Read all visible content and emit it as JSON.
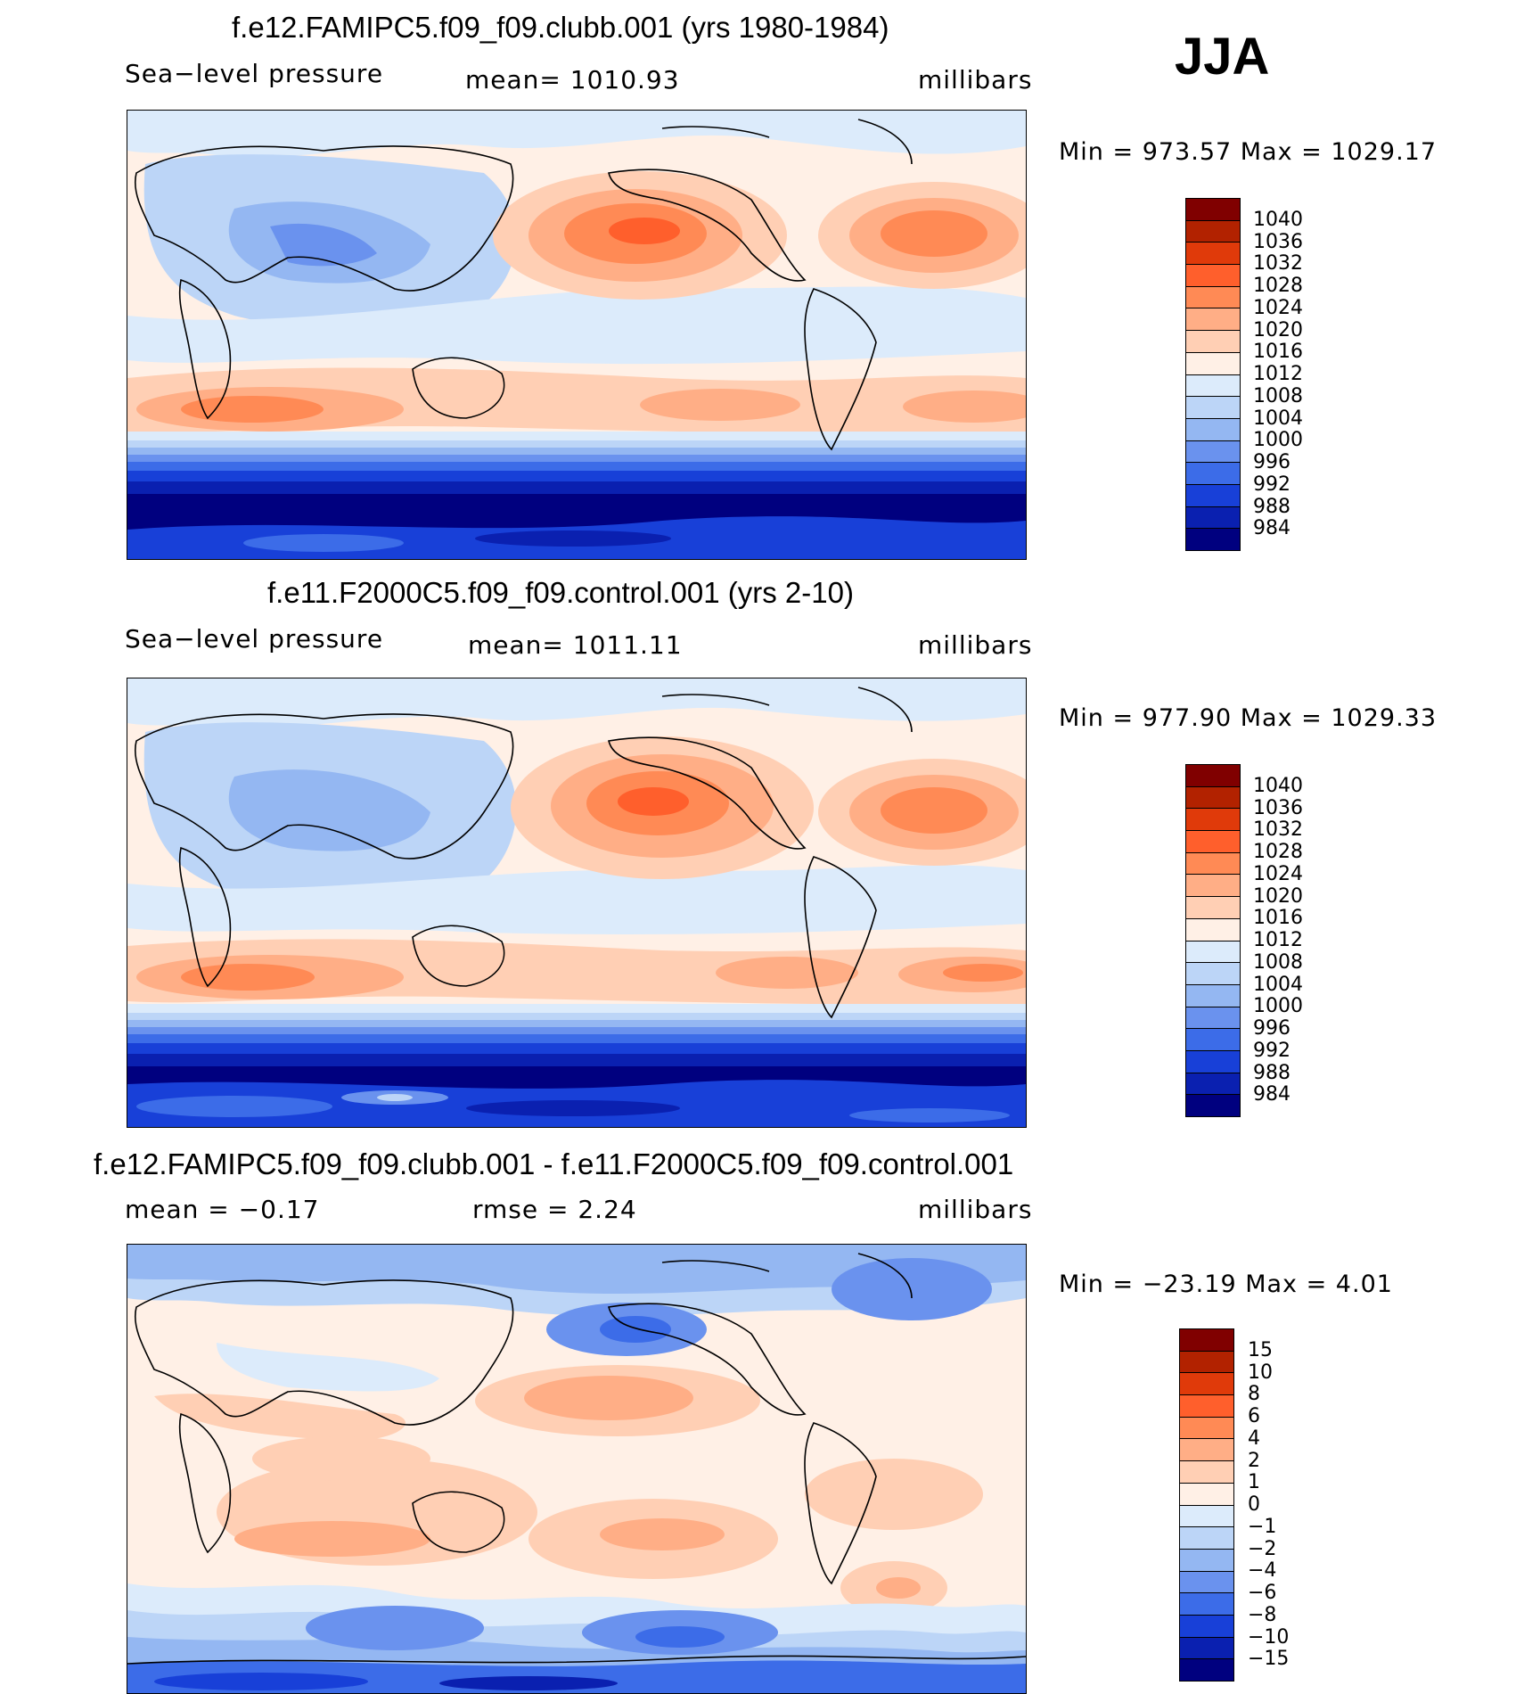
{
  "season": "JJA",
  "panels": [
    {
      "title": "f.e12.FAMIPC5.f09_f09.clubb.001 (yrs 1980-1984)",
      "left_label": "Sea−level  pressure",
      "center_label": "mean=  1010.93",
      "units": "millibars",
      "minmax": "Min  =  973.57  Max  =  1029.17",
      "colorbar": {
        "labels": [
          "1040",
          "1036",
          "1032",
          "1028",
          "1024",
          "1020",
          "1016",
          "1012",
          "1008",
          "1004",
          "1000",
          "996",
          "992",
          "988",
          "984"
        ],
        "colors": [
          "#800000",
          "#b22200",
          "#e03a0a",
          "#ff5f2c",
          "#ff8a55",
          "#ffae86",
          "#ffcfb4",
          "#fff0e6",
          "#dcebfb",
          "#bcd5f7",
          "#94b7f2",
          "#6a92ee",
          "#3c6ce8",
          "#1840d8",
          "#0a20b0",
          "#00007f"
        ]
      }
    },
    {
      "title": "f.e11.F2000C5.f09_f09.control.001 (yrs 2-10)",
      "left_label": "Sea−level  pressure",
      "center_label": "mean=  1011.11",
      "units": "millibars",
      "minmax": "Min  =  977.90  Max  =  1029.33",
      "colorbar": {
        "labels": [
          "1040",
          "1036",
          "1032",
          "1028",
          "1024",
          "1020",
          "1016",
          "1012",
          "1008",
          "1004",
          "1000",
          "996",
          "992",
          "988",
          "984"
        ],
        "colors": [
          "#800000",
          "#b22200",
          "#e03a0a",
          "#ff5f2c",
          "#ff8a55",
          "#ffae86",
          "#ffcfb4",
          "#fff0e6",
          "#dcebfb",
          "#bcd5f7",
          "#94b7f2",
          "#6a92ee",
          "#3c6ce8",
          "#1840d8",
          "#0a20b0",
          "#00007f"
        ]
      }
    },
    {
      "title": "f.e12.FAMIPC5.f09_f09.clubb.001 - f.e11.F2000C5.f09_f09.control.001",
      "left_label": "mean  =    −0.17",
      "center_label": "rmse  =     2.24",
      "units": "millibars",
      "minmax": "Min  =  −23.19  Max  =      4.01",
      "colorbar": {
        "labels": [
          "15",
          "10",
          "8",
          "6",
          "4",
          "2",
          "1",
          "0",
          "−1",
          "−2",
          "−4",
          "−6",
          "−8",
          "−10",
          "−15"
        ],
        "colors": [
          "#800000",
          "#b22200",
          "#e03a0a",
          "#ff5f2c",
          "#ff8a55",
          "#ffae86",
          "#ffcfb4",
          "#fff0e6",
          "#dcebfb",
          "#bcd5f7",
          "#94b7f2",
          "#6a92ee",
          "#3c6ce8",
          "#1840d8",
          "#0a20b0",
          "#00007f"
        ]
      }
    }
  ]
}
